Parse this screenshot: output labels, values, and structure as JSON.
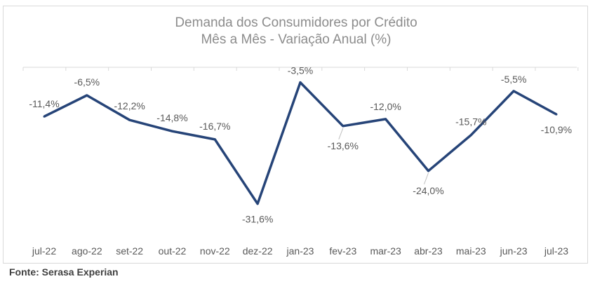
{
  "chart_data": {
    "type": "line",
    "title": "Demanda dos Consumidores por Crédito",
    "subtitle": "Mês a Mês - Variação Anual (%)",
    "xlabel": "",
    "ylabel": "",
    "categories": [
      "jul-22",
      "ago-22",
      "set-22",
      "out-22",
      "nov-22",
      "dez-22",
      "jan-23",
      "fev-23",
      "mar-23",
      "abr-23",
      "mai-23",
      "jun-23",
      "jul-23"
    ],
    "series": [
      {
        "name": "Variação Anual (%)",
        "values": [
          -11.4,
          -6.5,
          -12.2,
          -14.8,
          -16.7,
          -31.6,
          -3.5,
          -13.6,
          -12.0,
          -24.0,
          -15.7,
          -5.5,
          -10.9
        ],
        "labels": [
          "-11,4%",
          "-6,5%",
          "-12,2%",
          "-14,8%",
          "-16,7%",
          "-31,6%",
          "-3,5%",
          "-13,6%",
          "-12,0%",
          "-24,0%",
          "-15,7%",
          "-5,5%",
          "-10,9%"
        ],
        "label_positions": [
          "above",
          "above",
          "above",
          "above",
          "above",
          "below",
          "above",
          "below",
          "above",
          "below",
          "above",
          "above",
          "below"
        ]
      }
    ],
    "ylim": [
      -35,
      0
    ],
    "grid": false,
    "colors": {
      "line": "#264478",
      "labels": "#595959",
      "axis": "#d9d9d9"
    }
  },
  "source": "Fonte: Serasa Experian"
}
